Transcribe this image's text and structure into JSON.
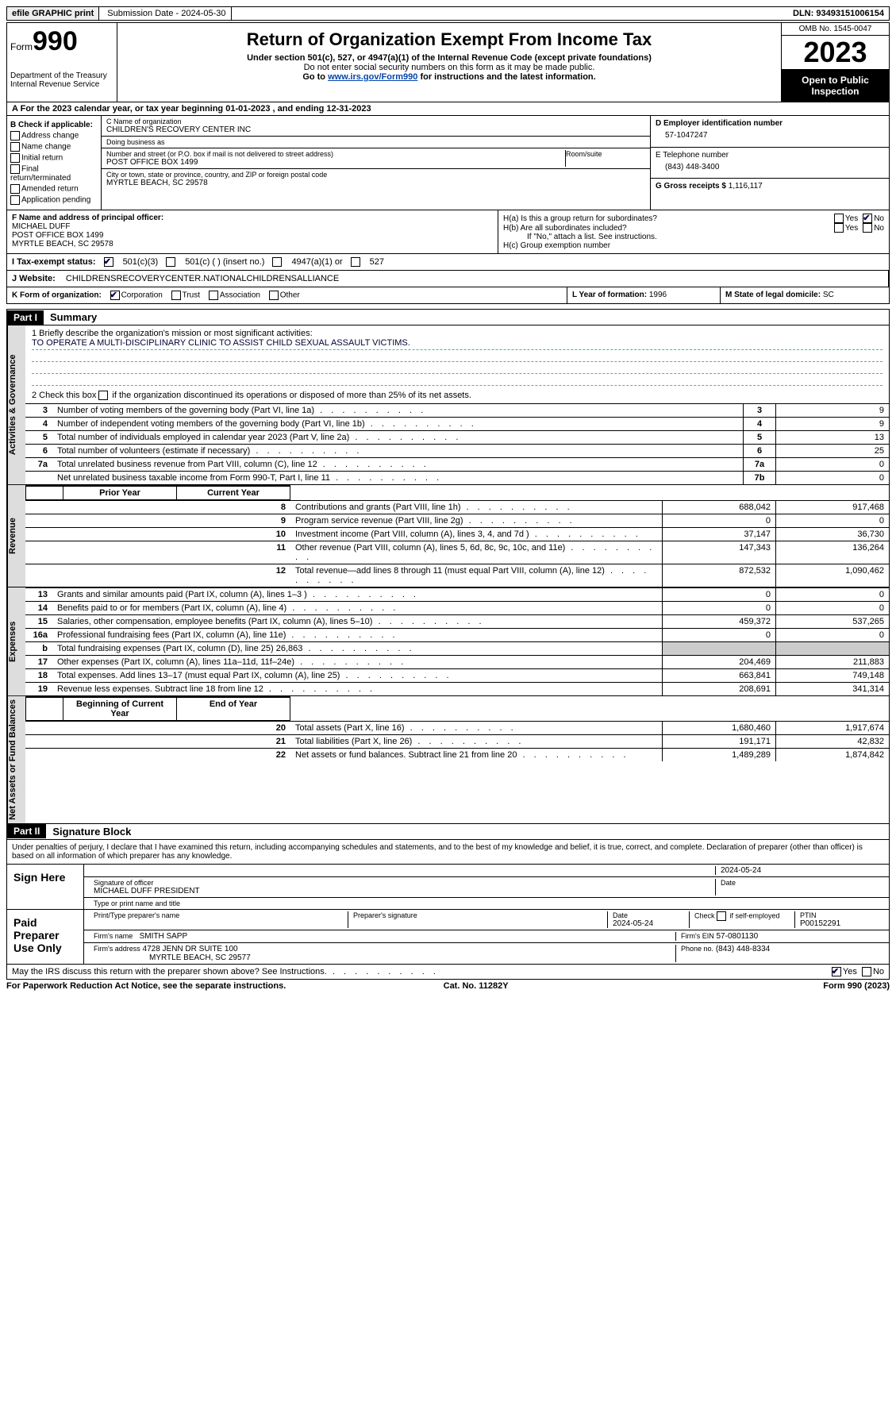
{
  "topbar": {
    "efile": "efile GRAPHIC print",
    "submission": "Submission Date - 2024-05-30",
    "dln": "DLN: 93493151006154"
  },
  "header": {
    "form_label": "Form",
    "form_no": "990",
    "dept": "Department of the Treasury Internal Revenue Service",
    "title": "Return of Organization Exempt From Income Tax",
    "sub1": "Under section 501(c), 527, or 4947(a)(1) of the Internal Revenue Code (except private foundations)",
    "sub2": "Do not enter social security numbers on this form as it may be made public.",
    "sub3_pre": "Go to ",
    "sub3_link": "www.irs.gov/Form990",
    "sub3_post": " for instructions and the latest information.",
    "omb": "OMB No. 1545-0047",
    "year": "2023",
    "open": "Open to Public Inspection"
  },
  "period": "For the 2023 calendar year, or tax year beginning 01-01-2023   , and ending 12-31-2023",
  "boxB": {
    "label": "B Check if applicable:",
    "opts": [
      "Address change",
      "Name change",
      "Initial return",
      "Final return/terminated",
      "Amended return",
      "Application pending"
    ]
  },
  "boxC": {
    "name_lbl": "C Name of organization",
    "name": "CHILDREN'S RECOVERY CENTER INC",
    "dba_lbl": "Doing business as",
    "dba": "",
    "addr_lbl": "Number and street (or P.O. box if mail is not delivered to street address)",
    "addr": "POST OFFICE BOX 1499",
    "room_lbl": "Room/suite",
    "city_lbl": "City or town, state or province, country, and ZIP or foreign postal code",
    "city": "MYRTLE BEACH, SC  29578"
  },
  "boxD": {
    "lbl": "D Employer identification number",
    "val": "57-1047247"
  },
  "boxE": {
    "lbl": "E Telephone number",
    "val": "(843) 448-3400"
  },
  "boxG": {
    "lbl": "G Gross receipts $",
    "val": "1,116,117"
  },
  "boxF": {
    "lbl": "F  Name and address of principal officer:",
    "name": "MICHAEL DUFF",
    "addr1": "POST OFFICE BOX 1499",
    "addr2": "MYRTLE BEACH, SC  29578"
  },
  "boxH": {
    "a_lbl": "H(a)  Is this a group return for subordinates?",
    "b_lbl": "H(b)  Are all subordinates included?",
    "note": "If \"No,\" attach a list. See instructions.",
    "c_lbl": "H(c)  Group exemption number",
    "yes": "Yes",
    "no": "No"
  },
  "boxI": {
    "lbl": "I   Tax-exempt status:",
    "o1": "501(c)(3)",
    "o2": "501(c) (  ) (insert no.)",
    "o3": "4947(a)(1) or",
    "o4": "527"
  },
  "boxJ": {
    "lbl": "J   Website:",
    "val": "CHILDRENSRECOVERYCENTER.NATIONALCHILDRENSALLIANCE"
  },
  "boxK": {
    "lbl": "K Form of organization:",
    "o1": "Corporation",
    "o2": "Trust",
    "o3": "Association",
    "o4": "Other"
  },
  "boxL": {
    "lbl": "L Year of formation:",
    "val": "1996"
  },
  "boxM": {
    "lbl": "M State of legal domicile:",
    "val": "SC"
  },
  "part1": {
    "hdr": "Part I",
    "title": "Summary"
  },
  "vtabs": {
    "gov": "Activities & Governance",
    "rev": "Revenue",
    "exp": "Expenses",
    "net": "Net Assets or Fund Balances"
  },
  "mission": {
    "lbl": "1   Briefly describe the organization's mission or most significant activities:",
    "val": "TO OPERATE A MULTI-DISCIPLINARY CLINIC TO ASSIST CHILD SEXUAL ASSAULT VICTIMS."
  },
  "line2": "2   Check this box      if the organization discontinued its operations or disposed of more than 25% of its net assets.",
  "gov_rows": [
    {
      "n": "3",
      "d": "Number of voting members of the governing body (Part VI, line 1a)",
      "box": "3",
      "v": "9"
    },
    {
      "n": "4",
      "d": "Number of independent voting members of the governing body (Part VI, line 1b)",
      "box": "4",
      "v": "9"
    },
    {
      "n": "5",
      "d": "Total number of individuals employed in calendar year 2023 (Part V, line 2a)",
      "box": "5",
      "v": "13"
    },
    {
      "n": "6",
      "d": "Total number of volunteers (estimate if necessary)",
      "box": "6",
      "v": "25"
    },
    {
      "n": "7a",
      "d": "Total unrelated business revenue from Part VIII, column (C), line 12",
      "box": "7a",
      "v": "0"
    },
    {
      "n": "",
      "d": "Net unrelated business taxable income from Form 990-T, Part I, line 11",
      "box": "7b",
      "v": "0"
    }
  ],
  "col_hdr": {
    "prior": "Prior Year",
    "curr": "Current Year"
  },
  "rev_rows": [
    {
      "n": "8",
      "d": "Contributions and grants (Part VIII, line 1h)",
      "p": "688,042",
      "c": "917,468"
    },
    {
      "n": "9",
      "d": "Program service revenue (Part VIII, line 2g)",
      "p": "0",
      "c": "0"
    },
    {
      "n": "10",
      "d": "Investment income (Part VIII, column (A), lines 3, 4, and 7d )",
      "p": "37,147",
      "c": "36,730"
    },
    {
      "n": "11",
      "d": "Other revenue (Part VIII, column (A), lines 5, 6d, 8c, 9c, 10c, and 11e)",
      "p": "147,343",
      "c": "136,264"
    },
    {
      "n": "12",
      "d": "Total revenue—add lines 8 through 11 (must equal Part VIII, column (A), line 12)",
      "p": "872,532",
      "c": "1,090,462"
    }
  ],
  "exp_rows": [
    {
      "n": "13",
      "d": "Grants and similar amounts paid (Part IX, column (A), lines 1–3 )",
      "p": "0",
      "c": "0"
    },
    {
      "n": "14",
      "d": "Benefits paid to or for members (Part IX, column (A), line 4)",
      "p": "0",
      "c": "0"
    },
    {
      "n": "15",
      "d": "Salaries, other compensation, employee benefits (Part IX, column (A), lines 5–10)",
      "p": "459,372",
      "c": "537,265"
    },
    {
      "n": "16a",
      "d": "Professional fundraising fees (Part IX, column (A), line 11e)",
      "p": "0",
      "c": "0"
    },
    {
      "n": "b",
      "d": "Total fundraising expenses (Part IX, column (D), line 25) 26,863",
      "p": "",
      "c": "",
      "shade": true
    },
    {
      "n": "17",
      "d": "Other expenses (Part IX, column (A), lines 11a–11d, 11f–24e)",
      "p": "204,469",
      "c": "211,883"
    },
    {
      "n": "18",
      "d": "Total expenses. Add lines 13–17 (must equal Part IX, column (A), line 25)",
      "p": "663,841",
      "c": "749,148"
    },
    {
      "n": "19",
      "d": "Revenue less expenses. Subtract line 18 from line 12",
      "p": "208,691",
      "c": "341,314"
    }
  ],
  "net_hdr": {
    "begin": "Beginning of Current Year",
    "end": "End of Year"
  },
  "net_rows": [
    {
      "n": "20",
      "d": "Total assets (Part X, line 16)",
      "p": "1,680,460",
      "c": "1,917,674"
    },
    {
      "n": "21",
      "d": "Total liabilities (Part X, line 26)",
      "p": "191,171",
      "c": "42,832"
    },
    {
      "n": "22",
      "d": "Net assets or fund balances. Subtract line 21 from line 20",
      "p": "1,489,289",
      "c": "1,874,842"
    }
  ],
  "part2": {
    "hdr": "Part II",
    "title": "Signature Block"
  },
  "sig": {
    "decl": "Under penalties of perjury, I declare that I have examined this return, including accompanying schedules and statements, and to the best of my knowledge and belief, it is true, correct, and complete. Declaration of preparer (other than officer) is based on all information of which preparer has any knowledge.",
    "sign_here": "Sign Here",
    "paid": "Paid Preparer Use Only",
    "officer_sig_lbl": "Signature of officer",
    "officer": "MICHAEL DUFF  PRESIDENT",
    "officer_name_lbl": "Type or print name and title",
    "date_lbl": "Date",
    "date1": "2024-05-24",
    "prep_name_lbl": "Print/Type preparer's name",
    "prep_sig_lbl": "Preparer's signature",
    "prep_date": "2024-05-24",
    "self_emp": "Check      if self-employed",
    "ptin_lbl": "PTIN",
    "ptin": "P00152291",
    "firm_name_lbl": "Firm's name",
    "firm_name": "SMITH SAPP",
    "firm_ein_lbl": "Firm's EIN",
    "firm_ein": "57-0801130",
    "firm_addr_lbl": "Firm's address",
    "firm_addr1": "4728 JENN DR SUITE 100",
    "firm_addr2": "MYRTLE BEACH, SC  29577",
    "phone_lbl": "Phone no.",
    "phone": "(843) 448-8334",
    "discuss": "May the IRS discuss this return with the preparer shown above? See Instructions."
  },
  "footer": {
    "l": "For Paperwork Reduction Act Notice, see the separate instructions.",
    "m": "Cat. No. 11282Y",
    "r": "Form 990 (2023)"
  }
}
